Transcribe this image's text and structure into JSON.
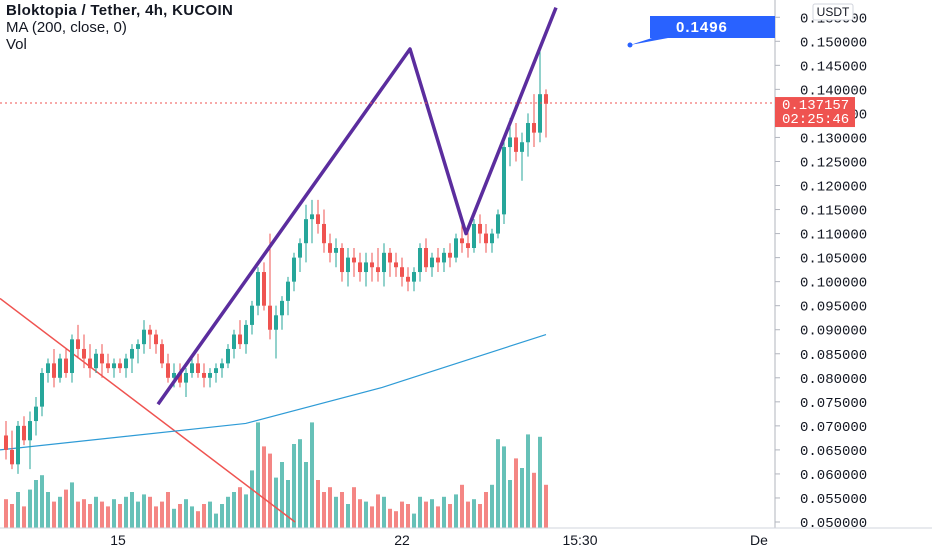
{
  "legend": {
    "title": "Bloktopia / Tether, 4h, KUCOIN",
    "ma": "MA (200, close, 0)",
    "vol": "Vol"
  },
  "axis": {
    "currency": "USDT",
    "price_ticks": [
      "0.155000",
      "0.150000",
      "0.145000",
      "0.140000",
      "0.135000",
      "0.130000",
      "0.125000",
      "0.120000",
      "0.115000",
      "0.110000",
      "0.105000",
      "0.100000",
      "0.095000",
      "0.090000",
      "0.085000",
      "0.080000",
      "0.075000",
      "0.070000",
      "0.065000",
      "0.060000",
      "0.055000",
      "0.050000"
    ],
    "time_ticks": [
      "15",
      "22",
      "15:30",
      "De"
    ]
  },
  "last_price": {
    "value": "0.137157",
    "countdown": "02:25:46"
  },
  "annotation": {
    "text": "0.1496"
  },
  "colors": {
    "up": "#26a69a",
    "down": "#ef5350",
    "pattern": "#5b2d9e",
    "trendline": "#ef5350",
    "ma": "#2e9bd6",
    "callout": "#2962ff"
  },
  "chart_data": {
    "type": "candlestick",
    "pair": "Bloktopia / Tether",
    "timeframe": "4h",
    "exchange": "KUCOIN",
    "ylim": [
      0.05,
      0.157
    ],
    "candles_ohlc": [
      [
        0.068,
        0.071,
        0.063,
        0.065
      ],
      [
        0.065,
        0.069,
        0.061,
        0.062
      ],
      [
        0.062,
        0.071,
        0.06,
        0.07
      ],
      [
        0.07,
        0.072,
        0.066,
        0.067
      ],
      [
        0.067,
        0.073,
        0.061,
        0.071
      ],
      [
        0.071,
        0.076,
        0.068,
        0.074
      ],
      [
        0.074,
        0.082,
        0.072,
        0.081
      ],
      [
        0.081,
        0.084,
        0.079,
        0.083
      ],
      [
        0.083,
        0.086,
        0.078,
        0.08
      ],
      [
        0.08,
        0.085,
        0.079,
        0.084
      ],
      [
        0.084,
        0.086,
        0.08,
        0.081
      ],
      [
        0.081,
        0.089,
        0.079,
        0.088
      ],
      [
        0.088,
        0.091,
        0.084,
        0.086
      ],
      [
        0.086,
        0.089,
        0.082,
        0.084
      ],
      [
        0.084,
        0.087,
        0.08,
        0.082
      ],
      [
        0.082,
        0.086,
        0.081,
        0.085
      ],
      [
        0.085,
        0.087,
        0.08,
        0.083
      ],
      [
        0.083,
        0.085,
        0.081,
        0.082
      ],
      [
        0.082,
        0.084,
        0.08,
        0.083
      ],
      [
        0.083,
        0.084,
        0.081,
        0.082
      ],
      [
        0.082,
        0.085,
        0.08,
        0.084
      ],
      [
        0.084,
        0.087,
        0.081,
        0.086
      ],
      [
        0.086,
        0.088,
        0.083,
        0.087
      ],
      [
        0.087,
        0.092,
        0.085,
        0.09
      ],
      [
        0.09,
        0.091,
        0.086,
        0.089
      ],
      [
        0.089,
        0.09,
        0.085,
        0.087
      ],
      [
        0.087,
        0.088,
        0.082,
        0.083
      ],
      [
        0.083,
        0.085,
        0.079,
        0.08
      ],
      [
        0.08,
        0.083,
        0.078,
        0.081
      ],
      [
        0.081,
        0.083,
        0.078,
        0.079
      ],
      [
        0.079,
        0.082,
        0.076,
        0.081
      ],
      [
        0.081,
        0.084,
        0.08,
        0.083
      ],
      [
        0.083,
        0.085,
        0.08,
        0.081
      ],
      [
        0.081,
        0.083,
        0.078,
        0.08
      ],
      [
        0.08,
        0.082,
        0.078,
        0.081
      ],
      [
        0.081,
        0.083,
        0.079,
        0.082
      ],
      [
        0.082,
        0.084,
        0.08,
        0.083
      ],
      [
        0.083,
        0.087,
        0.082,
        0.086
      ],
      [
        0.086,
        0.09,
        0.084,
        0.089
      ],
      [
        0.089,
        0.092,
        0.086,
        0.087
      ],
      [
        0.087,
        0.092,
        0.085,
        0.091
      ],
      [
        0.091,
        0.096,
        0.089,
        0.095
      ],
      [
        0.095,
        0.103,
        0.093,
        0.102
      ],
      [
        0.102,
        0.104,
        0.094,
        0.095
      ],
      [
        0.095,
        0.11,
        0.088,
        0.09
      ],
      [
        0.09,
        0.095,
        0.084,
        0.093
      ],
      [
        0.093,
        0.097,
        0.09,
        0.096
      ],
      [
        0.096,
        0.101,
        0.093,
        0.1
      ],
      [
        0.1,
        0.106,
        0.098,
        0.105
      ],
      [
        0.105,
        0.109,
        0.102,
        0.108
      ],
      [
        0.108,
        0.116,
        0.104,
        0.113
      ],
      [
        0.113,
        0.117,
        0.108,
        0.114
      ],
      [
        0.114,
        0.117,
        0.11,
        0.112
      ],
      [
        0.112,
        0.115,
        0.106,
        0.108
      ],
      [
        0.108,
        0.11,
        0.104,
        0.106
      ],
      [
        0.106,
        0.109,
        0.103,
        0.107
      ],
      [
        0.107,
        0.108,
        0.1,
        0.102
      ],
      [
        0.102,
        0.107,
        0.099,
        0.105
      ],
      [
        0.105,
        0.107,
        0.101,
        0.104
      ],
      [
        0.104,
        0.106,
        0.1,
        0.102
      ],
      [
        0.102,
        0.106,
        0.099,
        0.104
      ],
      [
        0.104,
        0.106,
        0.1,
        0.103
      ],
      [
        0.103,
        0.107,
        0.1,
        0.102
      ],
      [
        0.102,
        0.108,
        0.099,
        0.106
      ],
      [
        0.106,
        0.107,
        0.101,
        0.104
      ],
      [
        0.104,
        0.106,
        0.101,
        0.103
      ],
      [
        0.103,
        0.105,
        0.099,
        0.101
      ],
      [
        0.101,
        0.103,
        0.098,
        0.1
      ],
      [
        0.1,
        0.103,
        0.098,
        0.102
      ],
      [
        0.102,
        0.108,
        0.1,
        0.107
      ],
      [
        0.107,
        0.109,
        0.102,
        0.103
      ],
      [
        0.103,
        0.106,
        0.101,
        0.105
      ],
      [
        0.105,
        0.107,
        0.102,
        0.104
      ],
      [
        0.104,
        0.107,
        0.102,
        0.106
      ],
      [
        0.106,
        0.108,
        0.103,
        0.105
      ],
      [
        0.105,
        0.11,
        0.104,
        0.109
      ],
      [
        0.109,
        0.112,
        0.106,
        0.108
      ],
      [
        0.108,
        0.111,
        0.105,
        0.107
      ],
      [
        0.107,
        0.113,
        0.106,
        0.112
      ],
      [
        0.112,
        0.114,
        0.108,
        0.11
      ],
      [
        0.11,
        0.112,
        0.106,
        0.108
      ],
      [
        0.108,
        0.111,
        0.106,
        0.11
      ],
      [
        0.11,
        0.115,
        0.109,
        0.114
      ],
      [
        0.114,
        0.13,
        0.112,
        0.128
      ],
      [
        0.128,
        0.134,
        0.124,
        0.13
      ],
      [
        0.13,
        0.133,
        0.125,
        0.127
      ],
      [
        0.127,
        0.131,
        0.121,
        0.129
      ],
      [
        0.129,
        0.135,
        0.126,
        0.133
      ],
      [
        0.133,
        0.139,
        0.128,
        0.131
      ],
      [
        0.131,
        0.148,
        0.129,
        0.139
      ],
      [
        0.139,
        0.14,
        0.13,
        0.137
      ]
    ],
    "volume": [
      24,
      20,
      30,
      18,
      32,
      40,
      44,
      30,
      22,
      26,
      32,
      38,
      22,
      24,
      20,
      26,
      22,
      18,
      24,
      20,
      26,
      30,
      22,
      28,
      26,
      18,
      22,
      30,
      16,
      20,
      24,
      18,
      14,
      20,
      22,
      12,
      20,
      26,
      30,
      34,
      28,
      48,
      88,
      68,
      62,
      42,
      55,
      40,
      70,
      74,
      55,
      88,
      40,
      30,
      34,
      26,
      30,
      20,
      34,
      24,
      22,
      18,
      28,
      26,
      16,
      14,
      22,
      20,
      12,
      26,
      22,
      24,
      18,
      26,
      20,
      28,
      36,
      22,
      24,
      20,
      30,
      36,
      74,
      68,
      40,
      58,
      50,
      78,
      46,
      76,
      36
    ],
    "ma200": [
      [
        0.065,
        0.0
      ],
      [
        0.0705,
        0.45
      ],
      [
        0.078,
        0.7
      ],
      [
        0.089,
        1.0
      ]
    ]
  }
}
